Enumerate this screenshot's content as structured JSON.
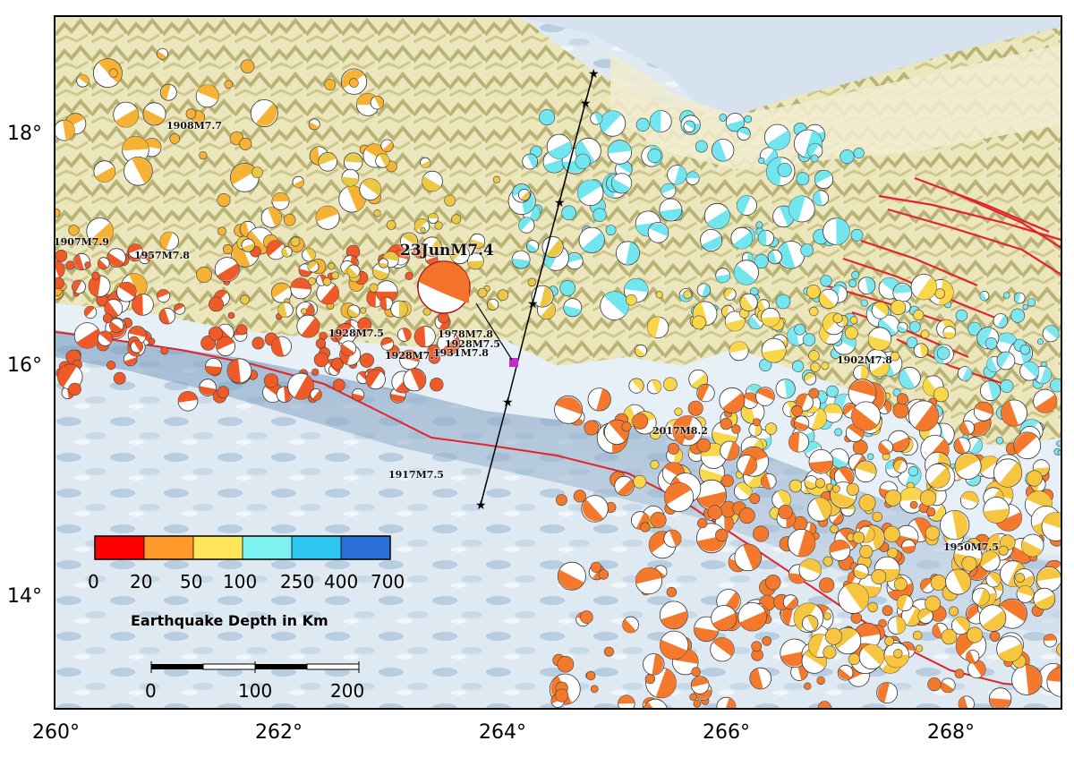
{
  "map": {
    "x_ticks": [
      "260°",
      "262°",
      "264°",
      "266°",
      "268°"
    ],
    "y_ticks": [
      "18°",
      "16°",
      "14°"
    ],
    "main_event_label": "23JunM7.4",
    "historic_labels": [
      "1908M7.7",
      "1907M7.9",
      "1957M7.8",
      "1928M7.5",
      "1978M7.8",
      "1928M7.5",
      "1928M7.7",
      "1931M7.8",
      "1902M7.8",
      "2017M8.2",
      "1917M7.5",
      "1950M7.5"
    ],
    "colors": {
      "trench": "#e0242c",
      "faults": "#e0242c",
      "cross_section": "#000000",
      "main_event": "#f3732a",
      "station_marker": "#c02bd0"
    }
  },
  "colorbar": {
    "title": "Earthquake Depth in Km",
    "ticks": [
      "0",
      "20",
      "50",
      "100",
      "250",
      "400",
      "700"
    ],
    "colors": [
      "#ff0000",
      "#ff9a2a",
      "#ffe55a",
      "#7ef2f0",
      "#2fc7f0",
      "#2a6fd8"
    ]
  },
  "scalebar": {
    "ticks": [
      "0",
      "100",
      "200"
    ]
  }
}
